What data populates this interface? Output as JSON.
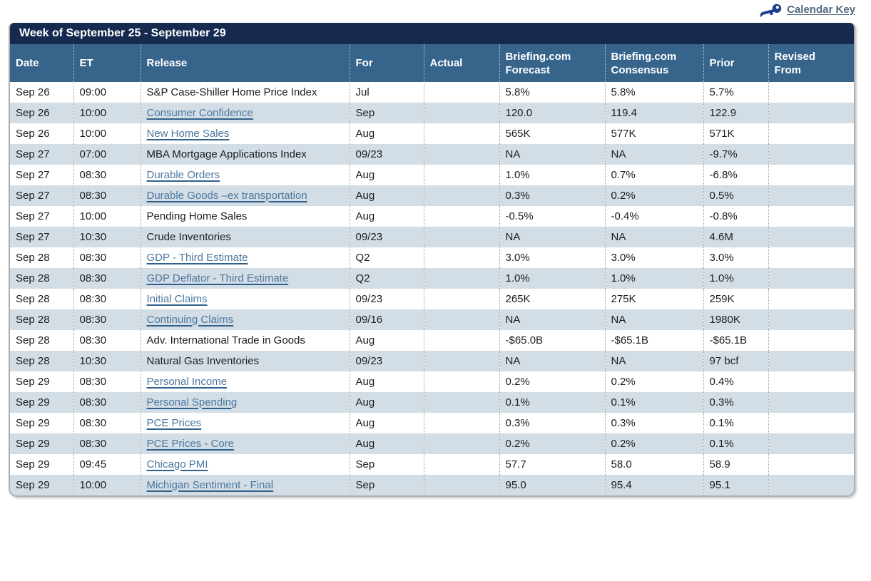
{
  "calendar_key": {
    "label": "Calendar Key"
  },
  "colors": {
    "title_bar": "#152a4e",
    "header_bg": "#36648b",
    "row_alt_bg": "#d2dde6",
    "link": "#4c779d",
    "key_icon": "#1e3e8c",
    "calendar_key_text": "#53697e",
    "outer_border": "#aeaeae"
  },
  "table": {
    "title": "Week of September 25 - September 29",
    "columns": [
      "Date",
      "ET",
      "Release",
      "For",
      "Actual",
      "Briefing.com Forecast",
      "Briefing.com Consensus",
      "Prior",
      "Revised From"
    ],
    "rows": [
      {
        "date": "Sep 26",
        "et": "09:00",
        "release": "S&P Case-Shiller Home Price Index",
        "link": false,
        "for": "Jul",
        "actual": "",
        "forecast": "5.8%",
        "consensus": "5.8%",
        "prior": "5.7%",
        "revised": ""
      },
      {
        "date": "Sep 26",
        "et": "10:00",
        "release": "Consumer Confidence",
        "link": true,
        "for": "Sep",
        "actual": "",
        "forecast": "120.0",
        "consensus": "119.4",
        "prior": "122.9",
        "revised": ""
      },
      {
        "date": "Sep 26",
        "et": "10:00",
        "release": "New Home Sales",
        "link": true,
        "for": "Aug",
        "actual": "",
        "forecast": "565K",
        "consensus": "577K",
        "prior": "571K",
        "revised": ""
      },
      {
        "date": "Sep 27",
        "et": "07:00",
        "release": "MBA Mortgage Applications Index",
        "link": false,
        "for": "09/23",
        "actual": "",
        "forecast": "NA",
        "consensus": "NA",
        "prior": "-9.7%",
        "revised": ""
      },
      {
        "date": "Sep 27",
        "et": "08:30",
        "release": "Durable Orders",
        "link": true,
        "for": "Aug",
        "actual": "",
        "forecast": "1.0%",
        "consensus": "0.7%",
        "prior": "-6.8%",
        "revised": ""
      },
      {
        "date": "Sep 27",
        "et": "08:30",
        "release": "Durable Goods –ex transportation",
        "link": true,
        "for": "Aug",
        "actual": "",
        "forecast": "0.3%",
        "consensus": "0.2%",
        "prior": "0.5%",
        "revised": ""
      },
      {
        "date": "Sep 27",
        "et": "10:00",
        "release": "Pending Home Sales",
        "link": false,
        "for": "Aug",
        "actual": "",
        "forecast": "-0.5%",
        "consensus": "-0.4%",
        "prior": "-0.8%",
        "revised": ""
      },
      {
        "date": "Sep 27",
        "et": "10:30",
        "release": "Crude Inventories",
        "link": false,
        "for": "09/23",
        "actual": "",
        "forecast": "NA",
        "consensus": "NA",
        "prior": "4.6M",
        "revised": ""
      },
      {
        "date": "Sep 28",
        "et": "08:30",
        "release": "GDP - Third Estimate",
        "link": true,
        "for": "Q2",
        "actual": "",
        "forecast": "3.0%",
        "consensus": "3.0%",
        "prior": "3.0%",
        "revised": ""
      },
      {
        "date": "Sep 28",
        "et": "08:30",
        "release": "GDP Deflator - Third Estimate",
        "link": true,
        "for": "Q2",
        "actual": "",
        "forecast": "1.0%",
        "consensus": "1.0%",
        "prior": "1.0%",
        "revised": ""
      },
      {
        "date": "Sep 28",
        "et": "08:30",
        "release": "Initial Claims",
        "link": true,
        "for": "09/23",
        "actual": "",
        "forecast": "265K",
        "consensus": "275K",
        "prior": "259K",
        "revised": ""
      },
      {
        "date": "Sep 28",
        "et": "08:30",
        "release": "Continuing Claims",
        "link": true,
        "for": "09/16",
        "actual": "",
        "forecast": "NA",
        "consensus": "NA",
        "prior": "1980K",
        "revised": ""
      },
      {
        "date": "Sep 28",
        "et": "08:30",
        "release": "Adv. International Trade in Goods",
        "link": false,
        "for": "Aug",
        "actual": "",
        "forecast": "-$65.0B",
        "consensus": "-$65.1B",
        "prior": "-$65.1B",
        "revised": ""
      },
      {
        "date": "Sep 28",
        "et": "10:30",
        "release": "Natural Gas Inventories",
        "link": false,
        "for": "09/23",
        "actual": "",
        "forecast": "NA",
        "consensus": "NA",
        "prior": "97 bcf",
        "revised": ""
      },
      {
        "date": "Sep 29",
        "et": "08:30",
        "release": "Personal Income",
        "link": true,
        "for": "Aug",
        "actual": "",
        "forecast": "0.2%",
        "consensus": "0.2%",
        "prior": "0.4%",
        "revised": ""
      },
      {
        "date": "Sep 29",
        "et": "08:30",
        "release": "Personal Spending",
        "link": true,
        "for": "Aug",
        "actual": "",
        "forecast": "0.1%",
        "consensus": "0.1%",
        "prior": "0.3%",
        "revised": ""
      },
      {
        "date": "Sep 29",
        "et": "08:30",
        "release": "PCE Prices",
        "link": true,
        "for": "Aug",
        "actual": "",
        "forecast": "0.3%",
        "consensus": "0.3%",
        "prior": "0.1%",
        "revised": ""
      },
      {
        "date": "Sep 29",
        "et": "08:30",
        "release": "PCE Prices - Core",
        "link": true,
        "for": "Aug",
        "actual": "",
        "forecast": "0.2%",
        "consensus": "0.2%",
        "prior": "0.1%",
        "revised": ""
      },
      {
        "date": "Sep 29",
        "et": "09:45",
        "release": "Chicago PMI",
        "link": true,
        "for": "Sep",
        "actual": "",
        "forecast": "57.7",
        "consensus": "58.0",
        "prior": "58.9",
        "revised": ""
      },
      {
        "date": "Sep 29",
        "et": "10:00",
        "release": "Michigan Sentiment - Final",
        "link": true,
        "for": "Sep",
        "actual": "",
        "forecast": "95.0",
        "consensus": "95.4",
        "prior": "95.1",
        "revised": ""
      }
    ]
  }
}
